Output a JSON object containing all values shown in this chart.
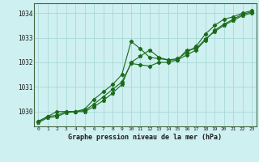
{
  "title": "Graphe pression niveau de la mer (hPa)",
  "background_color": "#cff0f0",
  "grid_color": "#aad8d8",
  "line_color": "#1a6b1a",
  "xlim": [
    -0.5,
    23.5
  ],
  "ylim": [
    1029.4,
    1034.4
  ],
  "yticks": [
    1030,
    1031,
    1032,
    1033,
    1034
  ],
  "xticks": [
    0,
    1,
    2,
    3,
    4,
    5,
    6,
    7,
    8,
    9,
    10,
    11,
    12,
    13,
    14,
    15,
    16,
    17,
    18,
    19,
    20,
    21,
    22,
    23
  ],
  "series1_x": [
    0,
    1,
    2,
    3,
    4,
    5,
    6,
    7,
    8,
    9,
    10,
    11,
    12,
    13,
    14,
    15,
    16,
    17,
    18,
    19,
    20,
    21,
    22,
    23
  ],
  "series1_y": [
    1029.6,
    1029.8,
    1029.85,
    1030.0,
    1030.0,
    1030.1,
    1030.5,
    1030.8,
    1031.1,
    1031.5,
    1032.85,
    1032.55,
    1032.2,
    1032.15,
    1032.1,
    1032.15,
    1032.4,
    1032.65,
    1033.15,
    1033.5,
    1033.75,
    1033.85,
    1034.0,
    1034.1
  ],
  "series2_x": [
    0,
    1,
    2,
    3,
    4,
    5,
    6,
    7,
    8,
    9,
    10,
    11,
    12,
    13,
    14,
    15,
    16,
    17,
    18,
    19,
    20,
    21,
    22,
    23
  ],
  "series2_y": [
    1029.6,
    1029.8,
    1030.0,
    1030.0,
    1030.0,
    1030.05,
    1030.3,
    1030.6,
    1030.9,
    1031.2,
    1031.95,
    1031.9,
    1031.85,
    1032.0,
    1032.0,
    1032.1,
    1032.3,
    1032.5,
    1032.9,
    1033.3,
    1033.55,
    1033.75,
    1033.95,
    1034.05
  ],
  "series3_x": [
    0,
    1,
    2,
    3,
    4,
    5,
    6,
    7,
    8,
    9,
    10,
    11,
    12,
    13,
    14,
    15,
    16,
    17,
    18,
    19,
    20,
    21,
    22,
    23
  ],
  "series3_y": [
    1029.55,
    1029.75,
    1029.8,
    1029.95,
    1030.0,
    1030.0,
    1030.2,
    1030.45,
    1030.75,
    1031.1,
    1032.0,
    1032.25,
    1032.5,
    1032.2,
    1032.1,
    1032.1,
    1032.5,
    1032.55,
    1032.95,
    1033.25,
    1033.5,
    1033.7,
    1033.9,
    1034.0
  ]
}
